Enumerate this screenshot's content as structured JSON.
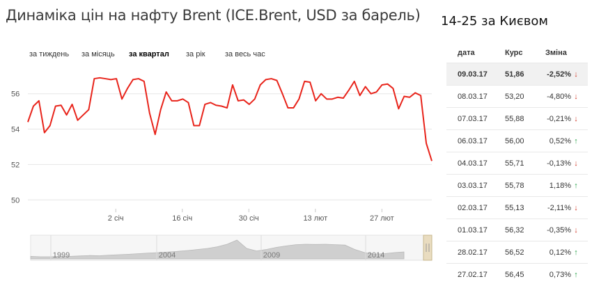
{
  "title": "Динаміка цін на нафту Brent (ICE.Brent, USD за барель)",
  "subtitle": "14-25 за Києвом",
  "periods": [
    {
      "label": "за тиждень",
      "active": false
    },
    {
      "label": "за місяць",
      "active": false
    },
    {
      "label": "за квартал",
      "active": true
    },
    {
      "label": "за рік",
      "active": false
    },
    {
      "label": "за весь час",
      "active": false
    }
  ],
  "colors": {
    "line": "#e8231a",
    "grid": "#e6e6e6",
    "navigator": "#cfcfcf",
    "up": "#2aa24b",
    "down": "#d23b2a"
  },
  "chart_data": {
    "type": "line",
    "y_ticks": [
      "50",
      "52",
      "54",
      "56"
    ],
    "ylim": [
      49.5,
      57.6
    ],
    "x_ticks": [
      {
        "label": "2 січ",
        "x": 18
      },
      {
        "label": "16 січ",
        "x": 32
      },
      {
        "label": "30 січ",
        "x": 46
      },
      {
        "label": "13 лют",
        "x": 60
      },
      {
        "label": "27 лют",
        "x": 74
      }
    ],
    "xlim": [
      -0.5,
      84.5
    ],
    "series": [
      {
        "values": [
          54.4,
          55.3,
          55.6,
          53.8,
          54.2,
          55.3,
          55.35,
          54.8,
          55.4,
          54.5,
          54.8,
          55.1,
          56.85,
          56.9,
          56.85,
          56.8,
          56.85,
          55.7,
          56.3,
          56.8,
          56.85,
          56.7,
          54.9,
          53.7,
          55.1,
          56.1,
          55.6,
          55.6,
          55.7,
          55.5,
          54.2,
          54.2,
          55.4,
          55.5,
          55.35,
          55.3,
          55.2,
          56.5,
          55.6,
          55.65,
          55.4,
          55.7,
          56.5,
          56.8,
          56.85,
          56.75,
          56.0,
          55.2,
          55.2,
          55.7,
          56.7,
          56.65,
          55.6,
          56.0,
          55.7,
          55.7,
          55.8,
          55.75,
          56.2,
          56.7,
          55.9,
          56.4,
          56.0,
          56.1,
          56.5,
          56.55,
          56.3,
          55.15,
          55.85,
          55.8,
          56.05,
          55.9,
          53.2,
          52.2
        ]
      }
    ],
    "navigator": {
      "labels": [
        "1999",
        "2004",
        "2009",
        "2014"
      ]
    }
  },
  "rates_table": {
    "headers": {
      "date": "дата",
      "rate": "Курс",
      "change": "Зміна"
    },
    "rows": [
      {
        "date": "09.03.17",
        "rate": "51,86",
        "change": "-2,52%",
        "dir": "down",
        "arrow": "↓",
        "active": true
      },
      {
        "date": "08.03.17",
        "rate": "53,20",
        "change": "-4,80%",
        "dir": "down",
        "arrow": "↓",
        "active": false
      },
      {
        "date": "07.03.17",
        "rate": "55,88",
        "change": "-0,21%",
        "dir": "down",
        "arrow": "↓",
        "active": false
      },
      {
        "date": "06.03.17",
        "rate": "56,00",
        "change": "0,52%",
        "dir": "up",
        "arrow": "↑",
        "active": false
      },
      {
        "date": "04.03.17",
        "rate": "55,71",
        "change": "-0,13%",
        "dir": "down",
        "arrow": "↓",
        "active": false
      },
      {
        "date": "03.03.17",
        "rate": "55,78",
        "change": "1,18%",
        "dir": "up",
        "arrow": "↑",
        "active": false
      },
      {
        "date": "02.03.17",
        "rate": "55,13",
        "change": "-2,11%",
        "dir": "down",
        "arrow": "↓",
        "active": false
      },
      {
        "date": "01.03.17",
        "rate": "56,32",
        "change": "-0,35%",
        "dir": "down",
        "arrow": "↓",
        "active": false
      },
      {
        "date": "28.02.17",
        "rate": "56,52",
        "change": "0,12%",
        "dir": "up",
        "arrow": "↑",
        "active": false
      },
      {
        "date": "27.02.17",
        "rate": "56,45",
        "change": "0,73%",
        "dir": "up",
        "arrow": "↑",
        "active": false
      }
    ]
  }
}
